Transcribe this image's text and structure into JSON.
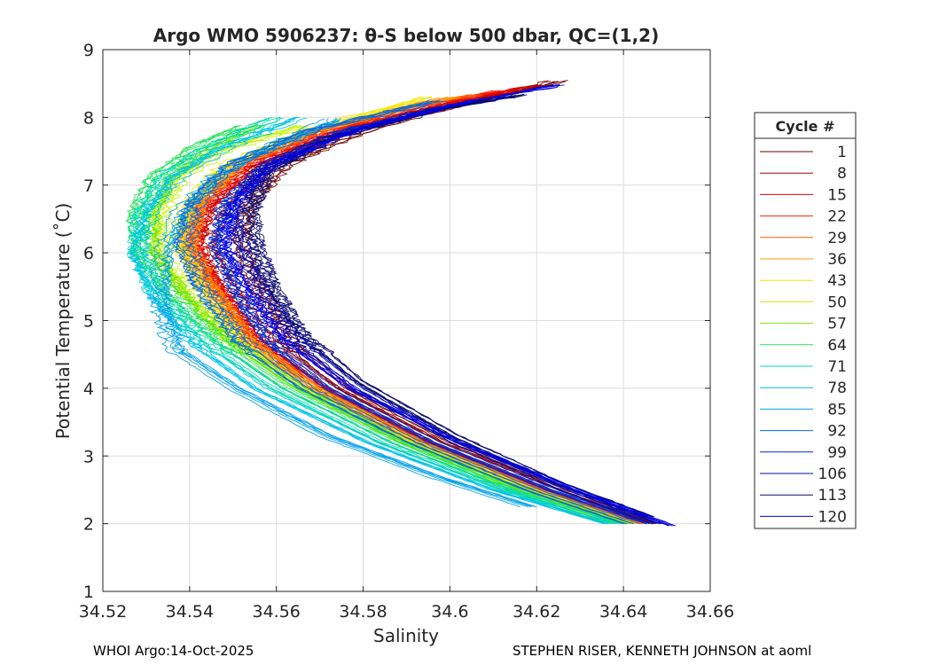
{
  "chart_data": {
    "type": "line",
    "title": "Argo WMO 5906237: θ-S below 500 dbar,  QC=(1,2)",
    "xlabel": "Salinity",
    "ylabel": "Potential Temperature (˚C)",
    "xlim": [
      34.52,
      34.66
    ],
    "ylim": [
      1,
      9
    ],
    "xticks": [
      34.52,
      34.54,
      34.56,
      34.58,
      34.6,
      34.62,
      34.64,
      34.66
    ],
    "xtick_labels": [
      "34.52",
      "34.54",
      "34.56",
      "34.58",
      "34.6",
      "34.62",
      "34.64",
      "34.66"
    ],
    "yticks": [
      1,
      2,
      3,
      4,
      5,
      6,
      7,
      8,
      9
    ],
    "ytick_labels": [
      "1",
      "2",
      "3",
      "4",
      "5",
      "6",
      "7",
      "8",
      "9"
    ],
    "grid": true,
    "legend_title": "Cycle #",
    "legend_position": "right outside",
    "series": [
      {
        "name": "1",
        "color": "#6b0000",
        "curve": [
          [
            34.647,
            2.0
          ],
          [
            34.627,
            2.5
          ],
          [
            34.6,
            3.2
          ],
          [
            34.576,
            4.0
          ],
          [
            34.563,
            4.7
          ],
          [
            34.556,
            5.5
          ],
          [
            34.552,
            6.1
          ],
          [
            34.554,
            6.7
          ],
          [
            34.562,
            7.3
          ],
          [
            34.58,
            7.8
          ],
          [
            34.603,
            8.2
          ],
          [
            34.626,
            8.55
          ]
        ]
      },
      {
        "name": "8",
        "color": "#a50000",
        "curve": [
          [
            34.645,
            2.0
          ],
          [
            34.624,
            2.5
          ],
          [
            34.597,
            3.2
          ],
          [
            34.573,
            4.0
          ],
          [
            34.558,
            4.7
          ],
          [
            34.549,
            5.5
          ],
          [
            34.544,
            6.1
          ],
          [
            34.547,
            6.7
          ],
          [
            34.557,
            7.3
          ],
          [
            34.576,
            7.8
          ],
          [
            34.601,
            8.2
          ],
          [
            34.624,
            8.5
          ]
        ]
      },
      {
        "name": "15",
        "color": "#e00000",
        "curve": [
          [
            34.644,
            2.0
          ],
          [
            34.622,
            2.5
          ],
          [
            34.595,
            3.2
          ],
          [
            34.571,
            4.0
          ],
          [
            34.556,
            4.7
          ],
          [
            34.547,
            5.5
          ],
          [
            34.542,
            6.1
          ],
          [
            34.545,
            6.7
          ],
          [
            34.555,
            7.3
          ],
          [
            34.574,
            7.8
          ],
          [
            34.599,
            8.2
          ],
          [
            34.618,
            8.45
          ]
        ]
      },
      {
        "name": "22",
        "color": "#ff2200",
        "curve": [
          [
            34.644,
            2.0
          ],
          [
            34.621,
            2.5
          ],
          [
            34.594,
            3.2
          ],
          [
            34.57,
            4.0
          ],
          [
            34.555,
            4.7
          ],
          [
            34.546,
            5.5
          ],
          [
            34.541,
            6.1
          ],
          [
            34.543,
            6.7
          ],
          [
            34.553,
            7.3
          ],
          [
            34.572,
            7.8
          ],
          [
            34.596,
            8.2
          ],
          [
            34.613,
            8.4
          ]
        ]
      },
      {
        "name": "29",
        "color": "#ff6000",
        "curve": [
          [
            34.643,
            2.0
          ],
          [
            34.62,
            2.5
          ],
          [
            34.593,
            3.2
          ],
          [
            34.569,
            4.0
          ],
          [
            34.554,
            4.7
          ],
          [
            34.545,
            5.5
          ],
          [
            34.54,
            6.1
          ],
          [
            34.542,
            6.7
          ],
          [
            34.551,
            7.3
          ],
          [
            34.57,
            7.8
          ],
          [
            34.594,
            8.2
          ],
          [
            34.608,
            8.35
          ]
        ]
      },
      {
        "name": "36",
        "color": "#ff9d00",
        "curve": [
          [
            34.642,
            2.0
          ],
          [
            34.619,
            2.5
          ],
          [
            34.592,
            3.2
          ],
          [
            34.568,
            4.0
          ],
          [
            34.553,
            4.7
          ],
          [
            34.544,
            5.5
          ],
          [
            34.539,
            6.1
          ],
          [
            34.541,
            6.7
          ],
          [
            34.55,
            7.3
          ],
          [
            34.568,
            7.8
          ],
          [
            34.59,
            8.15
          ],
          [
            34.6,
            8.3
          ]
        ]
      },
      {
        "name": "43",
        "color": "#f4e600",
        "curve": [
          [
            34.641,
            2.0
          ],
          [
            34.618,
            2.5
          ],
          [
            34.591,
            3.2
          ],
          [
            34.567,
            4.0
          ],
          [
            34.551,
            4.7
          ],
          [
            34.542,
            5.5
          ],
          [
            34.537,
            6.1
          ],
          [
            34.539,
            6.7
          ],
          [
            34.548,
            7.3
          ],
          [
            34.566,
            7.8
          ],
          [
            34.586,
            8.15
          ],
          [
            34.594,
            8.3
          ]
        ]
      },
      {
        "name": "50",
        "color": "#c8f000",
        "curve": [
          [
            34.64,
            2.0
          ],
          [
            34.617,
            2.5
          ],
          [
            34.59,
            3.2
          ],
          [
            34.566,
            4.0
          ],
          [
            34.55,
            4.7
          ],
          [
            34.54,
            5.4
          ],
          [
            34.534,
            6.0
          ],
          [
            34.534,
            6.6
          ],
          [
            34.538,
            7.1
          ],
          [
            34.548,
            7.5
          ],
          [
            34.56,
            7.75
          ],
          [
            34.568,
            7.9
          ]
        ]
      },
      {
        "name": "57",
        "color": "#76e600",
        "curve": [
          [
            34.64,
            2.0
          ],
          [
            34.616,
            2.5
          ],
          [
            34.589,
            3.2
          ],
          [
            34.565,
            4.0
          ],
          [
            34.549,
            4.7
          ],
          [
            34.538,
            5.4
          ],
          [
            34.531,
            6.0
          ],
          [
            34.531,
            6.6
          ],
          [
            34.535,
            7.1
          ],
          [
            34.543,
            7.5
          ],
          [
            34.551,
            7.75
          ],
          [
            34.556,
            7.9
          ]
        ]
      },
      {
        "name": "64",
        "color": "#22e05a",
        "curve": [
          [
            34.639,
            2.0
          ],
          [
            34.615,
            2.5
          ],
          [
            34.588,
            3.2
          ],
          [
            34.563,
            4.0
          ],
          [
            34.547,
            4.7
          ],
          [
            34.536,
            5.4
          ],
          [
            34.529,
            6.0
          ],
          [
            34.528,
            6.6
          ],
          [
            34.532,
            7.1
          ],
          [
            34.54,
            7.5
          ],
          [
            34.548,
            7.75
          ],
          [
            34.553,
            7.9
          ]
        ]
      },
      {
        "name": "71",
        "color": "#00d8b0",
        "curve": [
          [
            34.638,
            2.0
          ],
          [
            34.613,
            2.5
          ],
          [
            34.585,
            3.2
          ],
          [
            34.56,
            4.0
          ],
          [
            34.544,
            4.7
          ],
          [
            34.533,
            5.4
          ],
          [
            34.528,
            6.0
          ],
          [
            34.529,
            6.6
          ],
          [
            34.534,
            7.1
          ],
          [
            34.543,
            7.5
          ],
          [
            34.553,
            7.8
          ],
          [
            34.56,
            8.0
          ]
        ]
      },
      {
        "name": "78",
        "color": "#00c4e0",
        "curve": [
          [
            34.637,
            2.0
          ],
          [
            34.611,
            2.5
          ],
          [
            34.582,
            3.2
          ],
          [
            34.556,
            4.0
          ],
          [
            34.541,
            4.7
          ],
          [
            34.532,
            5.4
          ],
          [
            34.528,
            6.0
          ],
          [
            34.531,
            6.6
          ],
          [
            34.537,
            7.1
          ],
          [
            34.547,
            7.5
          ],
          [
            34.558,
            7.8
          ],
          [
            34.566,
            8.0
          ]
        ]
      },
      {
        "name": "85",
        "color": "#00a0e8",
        "curve": [
          [
            34.618,
            2.25
          ],
          [
            34.596,
            2.7
          ],
          [
            34.571,
            3.3
          ],
          [
            34.55,
            4.0
          ],
          [
            34.536,
            4.6
          ],
          [
            34.533,
            5.3
          ],
          [
            34.534,
            6.0
          ],
          [
            34.538,
            6.6
          ],
          [
            34.545,
            7.1
          ],
          [
            34.556,
            7.5
          ],
          [
            34.567,
            7.8
          ],
          [
            34.574,
            8.0
          ]
        ]
      },
      {
        "name": "92",
        "color": "#0064e6",
        "curve": [
          [
            34.642,
            2.0
          ],
          [
            34.619,
            2.5
          ],
          [
            34.592,
            3.2
          ],
          [
            34.567,
            4.0
          ],
          [
            34.552,
            4.7
          ],
          [
            34.543,
            5.5
          ],
          [
            34.539,
            6.1
          ],
          [
            34.541,
            6.7
          ],
          [
            34.55,
            7.3
          ],
          [
            34.568,
            7.8
          ],
          [
            34.588,
            8.1
          ],
          [
            34.598,
            8.25
          ]
        ]
      },
      {
        "name": "99",
        "color": "#0028d2",
        "curve": [
          [
            34.646,
            2.0
          ],
          [
            34.623,
            2.5
          ],
          [
            34.596,
            3.2
          ],
          [
            34.572,
            4.0
          ],
          [
            34.558,
            4.7
          ],
          [
            34.55,
            5.5
          ],
          [
            34.546,
            6.1
          ],
          [
            34.548,
            6.7
          ],
          [
            34.557,
            7.3
          ],
          [
            34.575,
            7.8
          ],
          [
            34.595,
            8.1
          ],
          [
            34.606,
            8.25
          ]
        ]
      },
      {
        "name": "106",
        "color": "#0a0aaa",
        "curve": [
          [
            34.648,
            2.0
          ],
          [
            34.627,
            2.5
          ],
          [
            34.602,
            3.2
          ],
          [
            34.58,
            4.0
          ],
          [
            34.566,
            4.7
          ],
          [
            34.558,
            5.4
          ],
          [
            34.553,
            6.0
          ],
          [
            34.551,
            6.6
          ],
          [
            34.556,
            7.2
          ],
          [
            34.572,
            7.7
          ],
          [
            34.595,
            8.1
          ],
          [
            34.614,
            8.3
          ]
        ]
      },
      {
        "name": "113",
        "color": "#0a0a6e",
        "curve": [
          [
            34.647,
            2.1
          ],
          [
            34.626,
            2.6
          ],
          [
            34.602,
            3.3
          ],
          [
            34.58,
            4.1
          ],
          [
            34.567,
            4.8
          ],
          [
            34.561,
            5.4
          ],
          [
            34.557,
            6.0
          ],
          [
            34.555,
            6.6
          ],
          [
            34.559,
            7.2
          ],
          [
            34.574,
            7.7
          ],
          [
            34.597,
            8.1
          ],
          [
            34.618,
            8.35
          ]
        ]
      },
      {
        "name": "120",
        "color": "#0000e6",
        "curve": [
          [
            34.65,
            1.97
          ],
          [
            34.628,
            2.5
          ],
          [
            34.601,
            3.2
          ],
          [
            34.576,
            4.0
          ],
          [
            34.561,
            4.7
          ],
          [
            34.552,
            5.5
          ],
          [
            34.547,
            6.1
          ],
          [
            34.549,
            6.7
          ],
          [
            34.558,
            7.3
          ],
          [
            34.577,
            7.8
          ],
          [
            34.601,
            8.2
          ],
          [
            34.626,
            8.5
          ]
        ]
      }
    ]
  },
  "footer": {
    "left": "WHOI Argo:14-Oct-2025",
    "right": "STEPHEN RISER, KENNETH JOHNSON at aoml"
  }
}
